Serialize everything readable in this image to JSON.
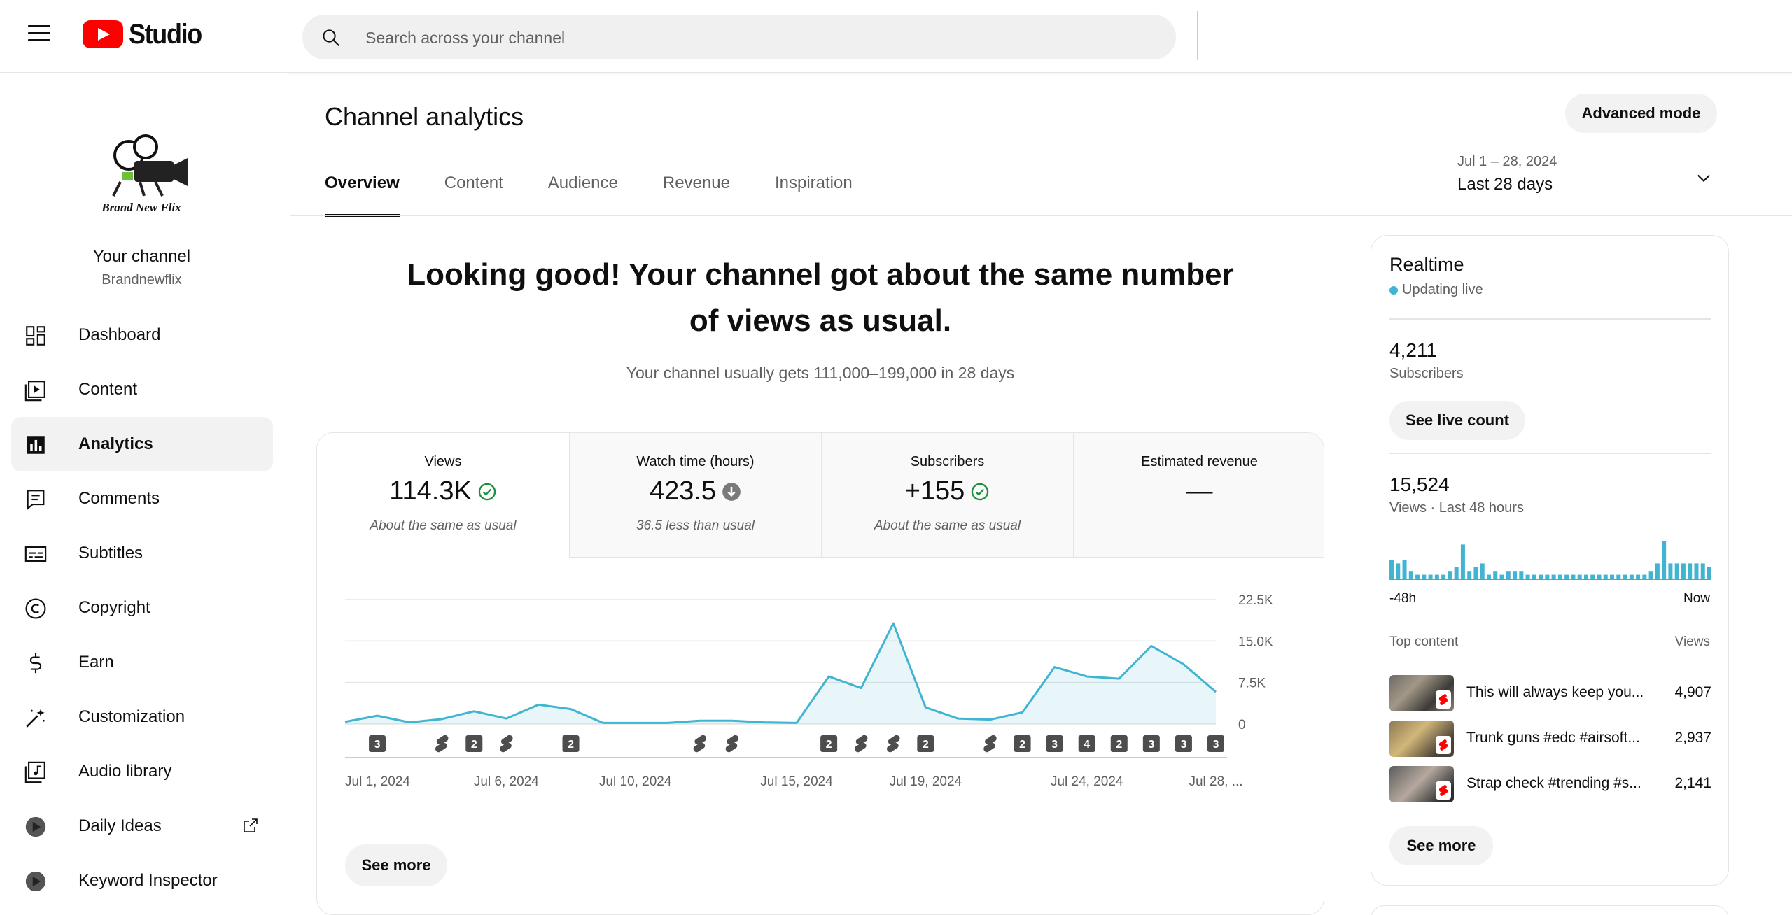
{
  "header": {
    "logo_text": "Studio",
    "search_placeholder": "Search across your channel"
  },
  "sidebar": {
    "channel_title": "Your channel",
    "channel_handle": "Brandnewflix",
    "avatar_text": "Brand New Flix",
    "items": [
      {
        "label": "Dashboard",
        "icon": "dashboard-icon",
        "active": false
      },
      {
        "label": "Content",
        "icon": "content-icon",
        "active": false
      },
      {
        "label": "Analytics",
        "icon": "analytics-icon",
        "active": true
      },
      {
        "label": "Comments",
        "icon": "comments-icon",
        "active": false
      },
      {
        "label": "Subtitles",
        "icon": "subtitles-icon",
        "active": false
      },
      {
        "label": "Copyright",
        "icon": "copyright-icon",
        "active": false
      },
      {
        "label": "Earn",
        "icon": "earn-icon",
        "active": false
      },
      {
        "label": "Customization",
        "icon": "customization-icon",
        "active": false
      },
      {
        "label": "Audio library",
        "icon": "audio-library-icon",
        "active": false
      },
      {
        "label": "Daily Ideas",
        "icon": "daily-ideas-icon",
        "active": false
      },
      {
        "label": "Keyword Inspector",
        "icon": "keyword-inspector-icon",
        "active": false
      }
    ]
  },
  "main": {
    "title": "Channel analytics",
    "advanced_mode_label": "Advanced mode",
    "tabs": [
      "Overview",
      "Content",
      "Audience",
      "Revenue",
      "Inspiration"
    ],
    "active_tab": "Overview",
    "date_range": {
      "sub": "Jul 1 – 28, 2024",
      "main": "Last 28 days"
    },
    "headline": "Looking good! Your channel got about the same number of views as usual.",
    "subline": "Your channel usually gets 111,000–199,000 in 28 days",
    "metrics": [
      {
        "title": "Views",
        "value": "114.3K",
        "note": "About the same as usual",
        "status": "check"
      },
      {
        "title": "Watch time (hours)",
        "value": "423.5",
        "note": "36.5 less than usual",
        "status": "down"
      },
      {
        "title": "Subscribers",
        "value": "+155",
        "note": "About the same as usual",
        "status": "check"
      },
      {
        "title": "Estimated revenue",
        "value": "—",
        "note": "",
        "status": "none"
      }
    ],
    "see_more_label": "See more"
  },
  "chart_data": {
    "type": "area",
    "x": [
      "Jul 1",
      "Jul 2",
      "Jul 3",
      "Jul 4",
      "Jul 5",
      "Jul 6",
      "Jul 7",
      "Jul 8",
      "Jul 9",
      "Jul 10",
      "Jul 11",
      "Jul 12",
      "Jul 13",
      "Jul 14",
      "Jul 15",
      "Jul 16",
      "Jul 17",
      "Jul 18",
      "Jul 19",
      "Jul 20",
      "Jul 21",
      "Jul 22",
      "Jul 23",
      "Jul 24",
      "Jul 25",
      "Jul 26",
      "Jul 27",
      "Jul 28"
    ],
    "values": [
      400,
      1500,
      300,
      900,
      2300,
      1000,
      3500,
      2700,
      200,
      200,
      200,
      600,
      600,
      300,
      200,
      8600,
      6500,
      18200,
      3000,
      1000,
      800,
      2100,
      10300,
      8600,
      8200,
      14100,
      10800,
      5800
    ],
    "x_tick_labels": [
      "Jul 1, 2024",
      "Jul 6, 2024",
      "Jul 10, 2024",
      "Jul 15, 2024",
      "Jul 19, 2024",
      "Jul 24, 2024",
      "Jul 28, ..."
    ],
    "x_tick_index": [
      0,
      5,
      9,
      14,
      18,
      23,
      27
    ],
    "y_ticks": [
      "22.5K",
      "15.0K",
      "7.5K",
      "0"
    ],
    "y_tick_values": [
      22500,
      15000,
      7500,
      0
    ],
    "ylim": [
      0,
      22500
    ],
    "grid": true,
    "color": "#41b4d2",
    "markers": [
      {
        "index": 1,
        "label": "3"
      },
      {
        "index": 3,
        "label": "shorts"
      },
      {
        "index": 4,
        "label": "2"
      },
      {
        "index": 5,
        "label": "shorts"
      },
      {
        "index": 7,
        "label": "2"
      },
      {
        "index": 11,
        "label": "shorts"
      },
      {
        "index": 12,
        "label": "shorts"
      },
      {
        "index": 15,
        "label": "2"
      },
      {
        "index": 16,
        "label": "shorts"
      },
      {
        "index": 17,
        "label": "shorts"
      },
      {
        "index": 18,
        "label": "2"
      },
      {
        "index": 20,
        "label": "shorts"
      },
      {
        "index": 21,
        "label": "2"
      },
      {
        "index": 22,
        "label": "3"
      },
      {
        "index": 23,
        "label": "4"
      },
      {
        "index": 24,
        "label": "2"
      },
      {
        "index": 25,
        "label": "3"
      },
      {
        "index": 26,
        "label": "3"
      },
      {
        "index": 27,
        "label": "3"
      }
    ]
  },
  "realtime": {
    "title": "Realtime",
    "live_label": "Updating live",
    "subscribers_value": "4,211",
    "subscribers_label": "Subscribers",
    "see_live_count_label": "See live count",
    "views_value": "15,524",
    "views_label": "Views · Last 48 hours",
    "spark_values": [
      5,
      4,
      5,
      2,
      1,
      1,
      1,
      1,
      1,
      2,
      3,
      9,
      2,
      3,
      4,
      1,
      2,
      1,
      2,
      2,
      2,
      1,
      1,
      1,
      1,
      1,
      1,
      1,
      1,
      1,
      1,
      1,
      1,
      1,
      1,
      1,
      1,
      1,
      1,
      1,
      2,
      4,
      10,
      4,
      4,
      4,
      4,
      4,
      4,
      3
    ],
    "axis_left": "-48h",
    "axis_right": "Now",
    "top_content_label": "Top content",
    "views_col_label": "Views",
    "top_content": [
      {
        "title": "This will always keep you...",
        "views": "4,907"
      },
      {
        "title": "Trunk guns #edc #airsoft...",
        "views": "2,937"
      },
      {
        "title": "Strap check #trending #s...",
        "views": "2,141"
      }
    ],
    "see_more_label": "See more",
    "color": "#41b4d2"
  }
}
